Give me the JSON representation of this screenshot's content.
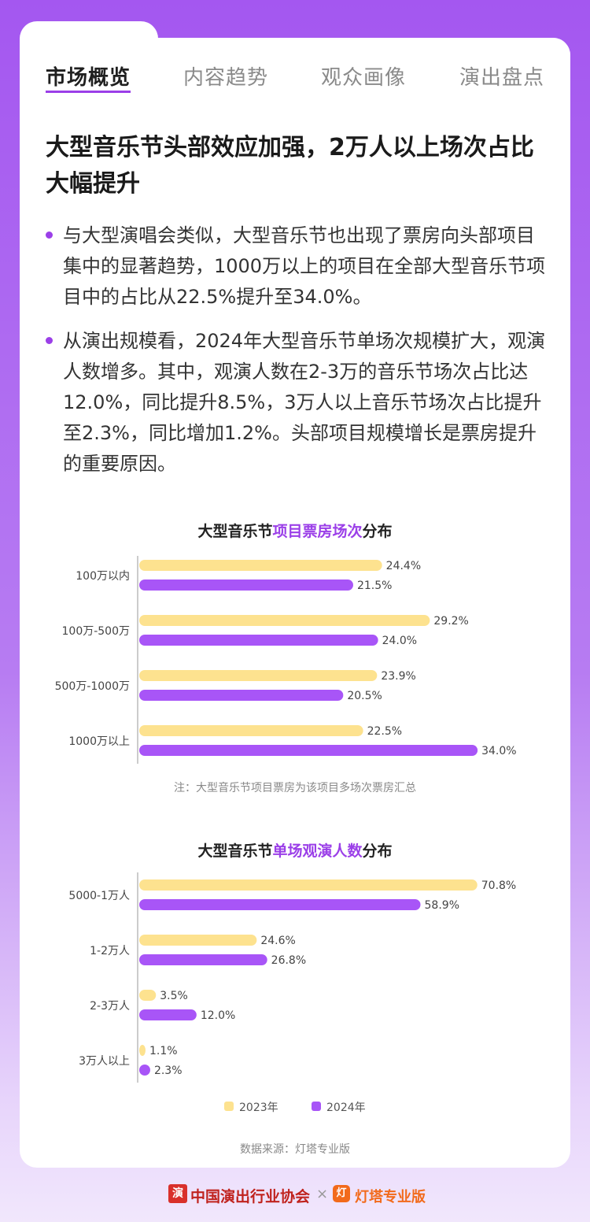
{
  "tabs": [
    "市场概览",
    "内容趋势",
    "观众画像",
    "演出盘点"
  ],
  "headline": "大型音乐节头部效应加强，2万人以上场次占比大幅提升",
  "bullets": [
    "与大型演唱会类似，大型音乐节也出现了票房向头部项目集中的显著趋势，1000万以上的项目在全部大型音乐节项目中的占比从22.5%提升至34.0%。",
    "从演出规模看，2024年大型音乐节单场次规模扩大，观演人数增多。其中，观演人数在2-3万的音乐节场次占比达12.0%，同比提升8.5%，3万人以上音乐节场次占比提升至2.3%，同比增加1.2%。头部项目规模增长是票房提升的重要原因。"
  ],
  "colors": {
    "accent": "#9b3fe8",
    "y2023": "#fde28f",
    "y2024": "#a855f7"
  },
  "chart_data": [
    {
      "type": "bar",
      "orientation": "horizontal",
      "title_prefix": "大型音乐节",
      "title_highlight": "项目票房场次",
      "title_suffix": "分布",
      "categories": [
        "100万以内",
        "100万-500万",
        "500万-1000万",
        "1000万以上"
      ],
      "series": [
        {
          "name": "2023年",
          "values": [
            24.4,
            29.2,
            23.9,
            22.5
          ],
          "labels": [
            "24.4%",
            "29.2%",
            "23.9%",
            "22.5%"
          ]
        },
        {
          "name": "2024年",
          "values": [
            21.5,
            24.0,
            20.5,
            34.0
          ],
          "labels": [
            "21.5%",
            "24.0%",
            "20.5%",
            "34.0%"
          ]
        }
      ],
      "note": "注：大型音乐节项目票房为该项目多场次票房汇总"
    },
    {
      "type": "bar",
      "orientation": "horizontal",
      "title_prefix": "大型音乐节",
      "title_highlight": "单场观演人数",
      "title_suffix": "分布",
      "categories": [
        "5000-1万人",
        "1-2万人",
        "2-3万人",
        "3万人以上"
      ],
      "series": [
        {
          "name": "2023年",
          "values": [
            70.8,
            24.6,
            3.5,
            1.1
          ],
          "labels": [
            "70.8%",
            "24.6%",
            "3.5%",
            "1.1%"
          ]
        },
        {
          "name": "2024年",
          "values": [
            58.9,
            26.8,
            12.0,
            2.3
          ],
          "labels": [
            "58.9%",
            "26.8%",
            "12.0%",
            "2.3%"
          ]
        }
      ],
      "legend": [
        "2023年",
        "2024年"
      ],
      "legend_position": "bottom"
    }
  ],
  "source": "数据来源：灯塔专业版",
  "footer": {
    "org": "中国演出行业协会",
    "separator": "×",
    "brand": "灯塔专业版",
    "seal_char": "演",
    "brand_icon_char": "灯"
  }
}
